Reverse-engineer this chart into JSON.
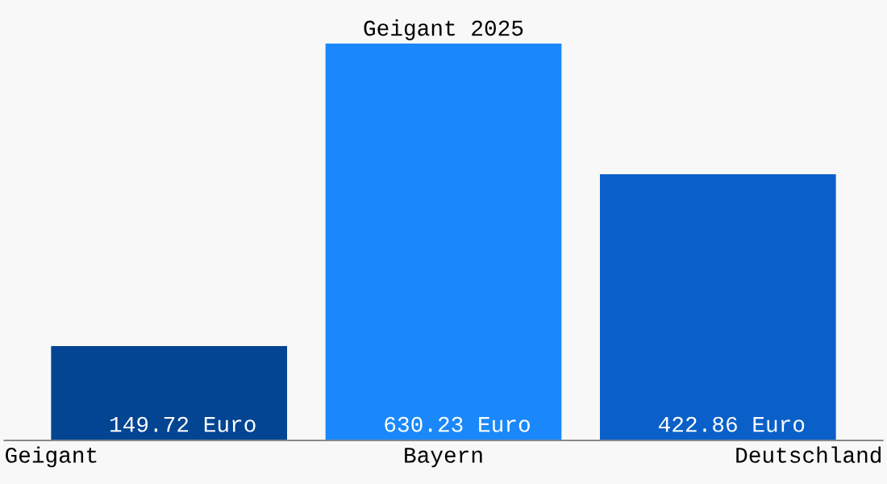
{
  "chart_data": {
    "type": "bar",
    "title": "Geigant 2025",
    "categories": [
      "Geigant",
      "Bayern",
      "Deutschland"
    ],
    "values": [
      149.72,
      630.23,
      422.86
    ],
    "colors": [
      "#034592",
      "#1a88fa",
      "#0a60c8"
    ],
    "value_labels": [
      "149.72 Euro",
      "630.23 Euro",
      "422.86 Euro"
    ],
    "data_labels": false
  }
}
